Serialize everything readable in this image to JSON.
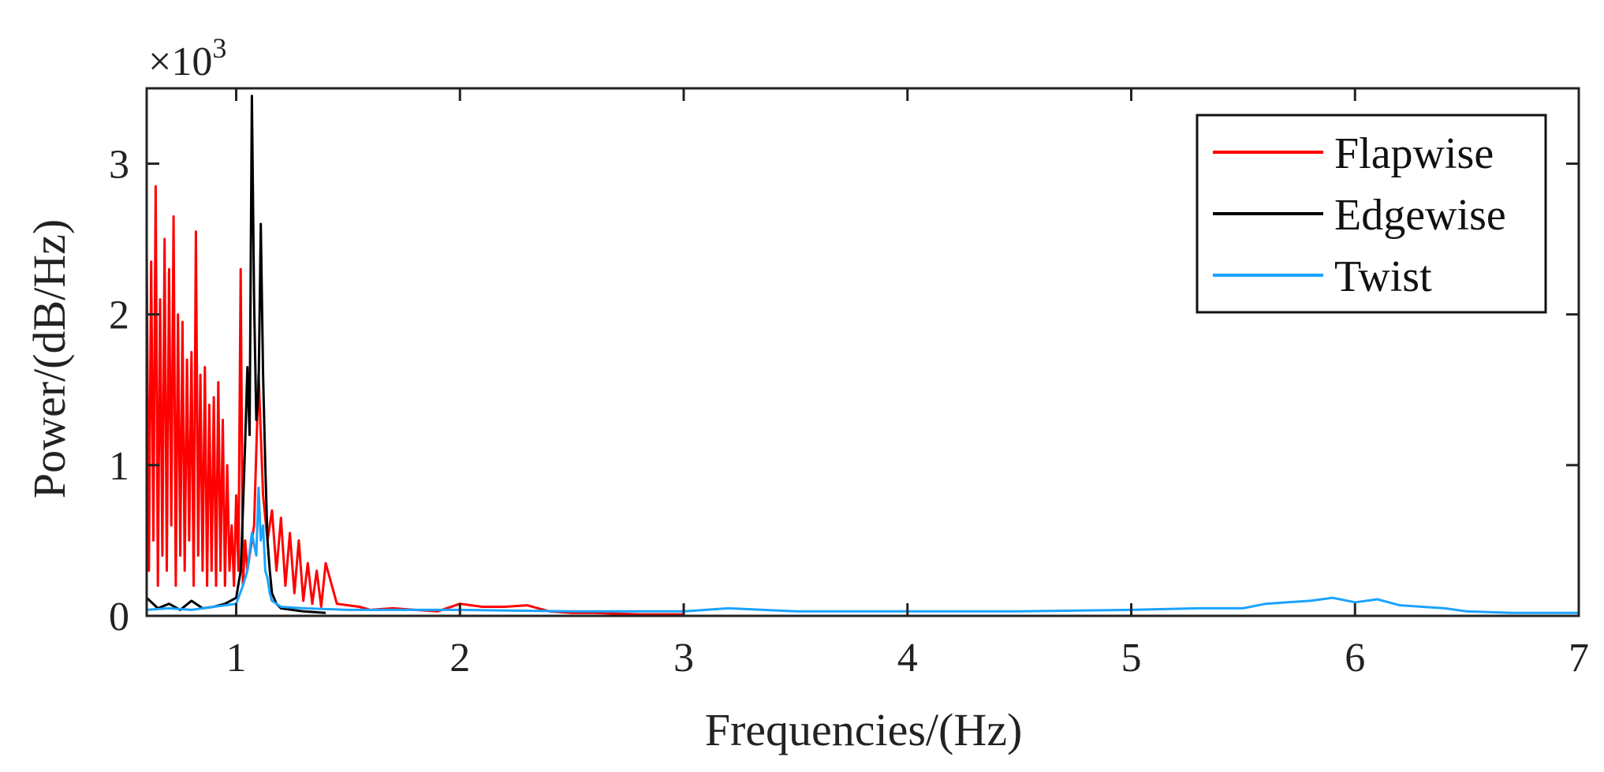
{
  "chart_data": {
    "type": "line",
    "xlabel": "Frequencies/(Hz)",
    "ylabel": "Power/(dB/Hz)",
    "y_multiplier": "×10",
    "y_multiplier_exp": "3",
    "xlim": [
      0.6,
      7
    ],
    "ylim": [
      0,
      3.5
    ],
    "x_ticks": [
      1,
      2,
      3,
      4,
      5,
      6,
      7
    ],
    "y_ticks": [
      0,
      1,
      2,
      3
    ],
    "x_tick_labels": [
      "1",
      "2",
      "3",
      "4",
      "5",
      "6",
      "7"
    ],
    "y_tick_labels": [
      "0",
      "1",
      "2",
      "3"
    ],
    "legend_position": "top-right",
    "grid": false,
    "series": [
      {
        "name": "Flapwise",
        "color": "#ff0000",
        "x": [
          0.6,
          0.61,
          0.62,
          0.63,
          0.64,
          0.65,
          0.66,
          0.67,
          0.68,
          0.69,
          0.7,
          0.71,
          0.72,
          0.73,
          0.74,
          0.75,
          0.76,
          0.77,
          0.78,
          0.79,
          0.8,
          0.81,
          0.82,
          0.83,
          0.84,
          0.85,
          0.86,
          0.87,
          0.88,
          0.89,
          0.9,
          0.91,
          0.92,
          0.93,
          0.94,
          0.95,
          0.96,
          0.97,
          0.98,
          0.99,
          1.0,
          1.01,
          1.02,
          1.03,
          1.04,
          1.05,
          1.06,
          1.08,
          1.1,
          1.12,
          1.14,
          1.16,
          1.18,
          1.2,
          1.22,
          1.24,
          1.26,
          1.28,
          1.3,
          1.32,
          1.34,
          1.36,
          1.38,
          1.4,
          1.45,
          1.5,
          1.55,
          1.6,
          1.7,
          1.8,
          1.9,
          2.0,
          2.1,
          2.2,
          2.3,
          2.4,
          2.5,
          2.6,
          2.8,
          3.0
        ],
        "y": [
          2.45,
          0.3,
          2.35,
          0.5,
          2.85,
          0.2,
          2.1,
          0.4,
          2.5,
          0.3,
          2.3,
          0.6,
          2.65,
          0.2,
          2.0,
          0.4,
          1.95,
          0.3,
          1.7,
          0.5,
          1.75,
          0.2,
          2.55,
          0.4,
          1.6,
          0.3,
          1.65,
          0.2,
          1.4,
          0.3,
          1.45,
          0.2,
          1.55,
          0.3,
          1.3,
          0.2,
          1.0,
          0.3,
          0.6,
          0.2,
          0.8,
          0.3,
          2.3,
          0.2,
          0.5,
          0.3,
          0.4,
          0.6,
          1.6,
          0.8,
          0.5,
          0.7,
          0.3,
          0.65,
          0.2,
          0.55,
          0.15,
          0.5,
          0.1,
          0.35,
          0.08,
          0.3,
          0.06,
          0.35,
          0.08,
          0.07,
          0.06,
          0.04,
          0.05,
          0.04,
          0.03,
          0.08,
          0.06,
          0.06,
          0.07,
          0.03,
          0.02,
          0.02,
          0.01,
          0.01
        ]
      },
      {
        "name": "Edgewise",
        "color": "#000000",
        "x": [
          0.6,
          0.65,
          0.7,
          0.75,
          0.8,
          0.85,
          0.9,
          0.95,
          1.0,
          1.02,
          1.03,
          1.04,
          1.05,
          1.06,
          1.07,
          1.08,
          1.09,
          1.1,
          1.11,
          1.12,
          1.13,
          1.14,
          1.15,
          1.16,
          1.18,
          1.2,
          1.25,
          1.3,
          1.4
        ],
        "y": [
          0.12,
          0.05,
          0.08,
          0.04,
          0.1,
          0.05,
          0.06,
          0.08,
          0.12,
          0.3,
          0.7,
          1.15,
          1.65,
          1.2,
          3.45,
          2.1,
          1.3,
          1.5,
          2.6,
          1.6,
          1.0,
          0.5,
          0.3,
          0.15,
          0.08,
          0.05,
          0.04,
          0.03,
          0.02
        ]
      },
      {
        "name": "Twist",
        "color": "#1aa3ff",
        "x": [
          0.6,
          0.7,
          0.8,
          0.9,
          1.0,
          1.03,
          1.05,
          1.07,
          1.09,
          1.1,
          1.11,
          1.12,
          1.13,
          1.14,
          1.15,
          1.16,
          1.2,
          1.3,
          1.5,
          1.7,
          2.0,
          2.5,
          3.0,
          3.2,
          3.5,
          4.0,
          4.5,
          5.0,
          5.3,
          5.5,
          5.6,
          5.7,
          5.8,
          5.9,
          6.0,
          6.1,
          6.2,
          6.3,
          6.4,
          6.5,
          6.7,
          7.0
        ],
        "y": [
          0.04,
          0.05,
          0.04,
          0.06,
          0.08,
          0.2,
          0.3,
          0.55,
          0.4,
          0.85,
          0.5,
          0.6,
          0.3,
          0.25,
          0.15,
          0.1,
          0.06,
          0.05,
          0.04,
          0.04,
          0.04,
          0.03,
          0.03,
          0.05,
          0.03,
          0.03,
          0.03,
          0.04,
          0.05,
          0.05,
          0.08,
          0.09,
          0.1,
          0.12,
          0.09,
          0.11,
          0.07,
          0.06,
          0.05,
          0.03,
          0.02,
          0.02
        ]
      }
    ]
  }
}
